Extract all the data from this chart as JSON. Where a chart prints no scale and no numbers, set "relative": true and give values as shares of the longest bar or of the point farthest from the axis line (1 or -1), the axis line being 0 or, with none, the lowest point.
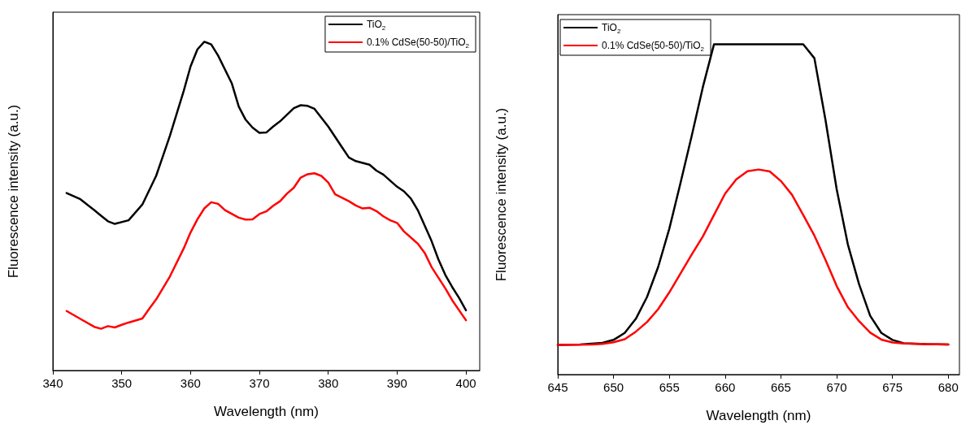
{
  "chart_data": [
    {
      "type": "line",
      "relative": true,
      "xlabel": "Wavelength (nm)",
      "ylabel": "Fluorescence intensity (a.u.)",
      "xlim": [
        340,
        402
      ],
      "xticks": [
        340,
        350,
        360,
        370,
        380,
        390,
        400
      ],
      "legend": "top right",
      "grid": false,
      "marker": "none",
      "line_style": "solid",
      "tick_labels": "x",
      "series": [
        {
          "name": "TiO$_{2}$",
          "color": "#000000",
          "x": [
            342,
            344,
            346,
            347,
            348,
            349,
            351,
            353,
            355,
            356,
            357,
            359,
            360,
            361,
            362,
            363,
            364,
            366,
            367,
            368,
            369,
            370,
            371,
            372,
            373,
            375,
            376,
            377,
            378,
            380,
            382,
            383,
            384,
            386,
            387,
            388,
            390,
            391,
            392,
            393,
            395,
            396,
            397,
            398,
            399,
            400
          ],
          "values": [
            0.54,
            0.521,
            0.488,
            0.471,
            0.454,
            0.446,
            0.457,
            0.505,
            0.592,
            0.653,
            0.714,
            0.85,
            0.925,
            0.977,
            1,
            0.992,
            0.958,
            0.873,
            0.803,
            0.763,
            0.739,
            0.723,
            0.724,
            0.742,
            0.758,
            0.798,
            0.807,
            0.805,
            0.796,
            0.742,
            0.679,
            0.648,
            0.637,
            0.626,
            0.608,
            0.596,
            0.559,
            0.545,
            0.523,
            0.488,
            0.394,
            0.338,
            0.291,
            0.254,
            0.221,
            0.183
          ]
        },
        {
          "name": "0.1% CdSe(50-50)/TiO$_{2}$",
          "color": "#ff0000",
          "x": [
            342,
            344,
            346,
            347,
            348,
            349,
            350,
            351,
            353,
            354,
            355,
            357,
            359,
            360,
            361,
            362,
            363,
            364,
            365,
            367,
            368,
            369,
            370,
            371,
            372,
            373,
            374,
            375,
            376,
            377,
            378,
            379,
            380,
            381,
            383,
            384,
            385,
            386,
            387,
            388,
            389,
            390,
            391,
            393,
            394,
            395,
            397,
            398,
            400
          ],
          "values": [
            0.181,
            0.157,
            0.133,
            0.127,
            0.135,
            0.131,
            0.139,
            0.146,
            0.158,
            0.188,
            0.216,
            0.286,
            0.371,
            0.42,
            0.46,
            0.493,
            0.512,
            0.507,
            0.488,
            0.465,
            0.459,
            0.46,
            0.476,
            0.484,
            0.501,
            0.515,
            0.538,
            0.556,
            0.587,
            0.597,
            0.6,
            0.592,
            0.572,
            0.536,
            0.515,
            0.502,
            0.493,
            0.495,
            0.485,
            0.469,
            0.457,
            0.449,
            0.423,
            0.386,
            0.358,
            0.315,
            0.25,
            0.214,
            0.153
          ]
        }
      ]
    },
    {
      "type": "line",
      "relative": true,
      "xlabel": "Wavelength (nm)",
      "ylabel": "Fluorescence intensity (a.u.)",
      "xlim": [
        645,
        681
      ],
      "xticks": [
        645,
        650,
        655,
        660,
        665,
        670,
        675,
        680
      ],
      "legend": "top left",
      "grid": false,
      "marker": "none",
      "line_style": "solid",
      "tick_labels": "x",
      "series": [
        {
          "name": "TiO$_{2}$",
          "color": "#000000",
          "x": [
            645,
            647,
            649,
            650,
            651,
            652,
            653,
            654,
            655,
            656,
            657,
            658,
            659,
            667,
            668,
            669,
            670,
            671,
            672,
            673,
            674,
            675,
            676,
            678,
            680
          ],
          "values": [
            0.09,
            0.091,
            0.096,
            0.105,
            0.126,
            0.169,
            0.235,
            0.326,
            0.442,
            0.58,
            0.722,
            0.87,
            1,
            1,
            0.958,
            0.77,
            0.561,
            0.394,
            0.274,
            0.178,
            0.126,
            0.105,
            0.095,
            0.092,
            0.091
          ]
        },
        {
          "name": "0.1% CdSe(50-50)/TiO$_{2}$",
          "color": "#ff0000",
          "x": [
            645,
            648,
            649,
            650,
            651,
            652,
            653,
            654,
            655,
            656,
            657,
            658,
            659,
            660,
            661,
            662,
            663,
            664,
            665,
            666,
            667,
            668,
            669,
            670,
            671,
            672,
            673,
            674,
            675,
            676,
            678,
            680
          ],
          "values": [
            0.09,
            0.091,
            0.093,
            0.098,
            0.107,
            0.13,
            0.159,
            0.198,
            0.249,
            0.306,
            0.363,
            0.418,
            0.483,
            0.548,
            0.591,
            0.616,
            0.621,
            0.615,
            0.586,
            0.544,
            0.483,
            0.421,
            0.347,
            0.268,
            0.204,
            0.162,
            0.127,
            0.106,
            0.097,
            0.094,
            0.092,
            0.091
          ]
        }
      ]
    }
  ]
}
